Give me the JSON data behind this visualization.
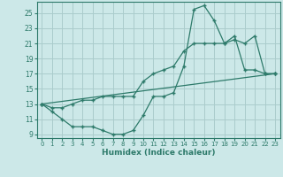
{
  "xlabel": "Humidex (Indice chaleur)",
  "background_color": "#cce8e8",
  "grid_color": "#aacccc",
  "line_color": "#2d7a6a",
  "xlim": [
    -0.5,
    23.5
  ],
  "ylim": [
    8.5,
    26.5
  ],
  "yticks": [
    9,
    11,
    13,
    15,
    17,
    19,
    21,
    23,
    25
  ],
  "xticks": [
    0,
    1,
    2,
    3,
    4,
    5,
    6,
    7,
    8,
    9,
    10,
    11,
    12,
    13,
    14,
    15,
    16,
    17,
    18,
    19,
    20,
    21,
    22,
    23
  ],
  "series1_x": [
    0,
    1,
    2,
    3,
    4,
    5,
    6,
    7,
    8,
    9,
    10,
    11,
    12,
    13,
    14,
    15,
    16,
    17,
    18,
    19,
    20,
    21,
    22,
    23
  ],
  "series1_y": [
    13,
    12,
    11,
    10,
    10,
    10,
    9.5,
    9,
    9,
    9.5,
    11.5,
    14,
    14,
    14.5,
    18,
    25.5,
    26,
    24,
    21,
    22,
    17.5,
    17.5,
    17,
    17
  ],
  "series2_x": [
    0,
    1,
    2,
    3,
    4,
    5,
    6,
    7,
    8,
    9,
    10,
    11,
    12,
    13,
    14,
    15,
    16,
    17,
    18,
    19,
    20,
    21,
    22,
    23
  ],
  "series2_y": [
    13,
    12.5,
    12.5,
    13,
    13.5,
    13.5,
    14,
    14,
    14,
    14,
    16,
    17,
    17.5,
    18,
    20,
    21,
    21,
    21,
    21,
    21.5,
    21,
    22,
    17,
    17
  ],
  "series3_x": [
    0,
    23
  ],
  "series3_y": [
    13,
    17
  ]
}
